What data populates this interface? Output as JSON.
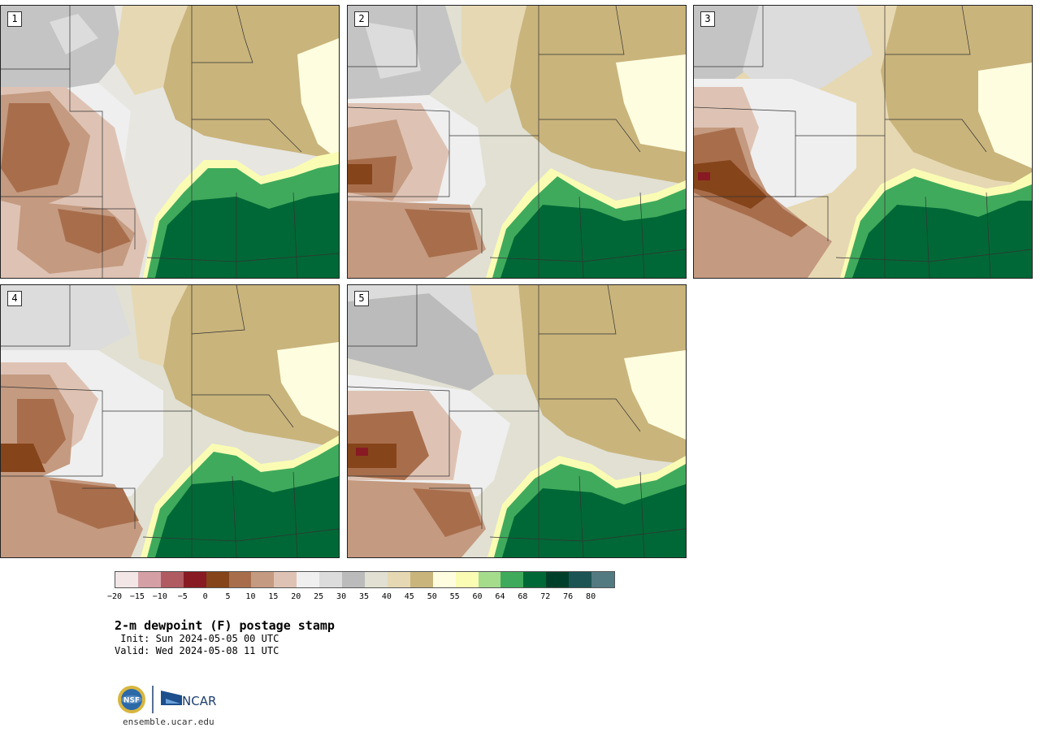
{
  "panels": [
    {
      "id": "1"
    },
    {
      "id": "2"
    },
    {
      "id": "3"
    },
    {
      "id": "4"
    },
    {
      "id": "5"
    }
  ],
  "colorbar": {
    "colors": [
      "#f2e6e6",
      "#d4a0a6",
      "#b05a62",
      "#881a24",
      "#85441a",
      "#a86e4c",
      "#c49a80",
      "#dec3b4",
      "#efefef",
      "#dcdcdc",
      "#bbbbbb",
      "#e1e0d2",
      "#e6d8b2",
      "#c9b47c",
      "#fffde0",
      "#fafcb4",
      "#a4dc8c",
      "#40aa5c",
      "#006836",
      "#00402a",
      "#1c5454",
      "#527a80"
    ],
    "ticks": [
      "-20",
      "-15",
      "-10",
      "-5",
      "0",
      "5",
      "10",
      "15",
      "20",
      "25",
      "30",
      "35",
      "40",
      "45",
      "50",
      "55",
      "60",
      "64",
      "68",
      "72",
      "76",
      "80"
    ]
  },
  "title": "2-m dewpoint (F) postage stamp",
  "init": " Init: Sun 2024-05-05 00 UTC",
  "valid": "Valid: Wed 2024-05-08 11 UTC",
  "logo": {
    "nsf_text": "NSF",
    "ncar_text": "NCAR"
  },
  "site": "ensemble.ucar.edu"
}
